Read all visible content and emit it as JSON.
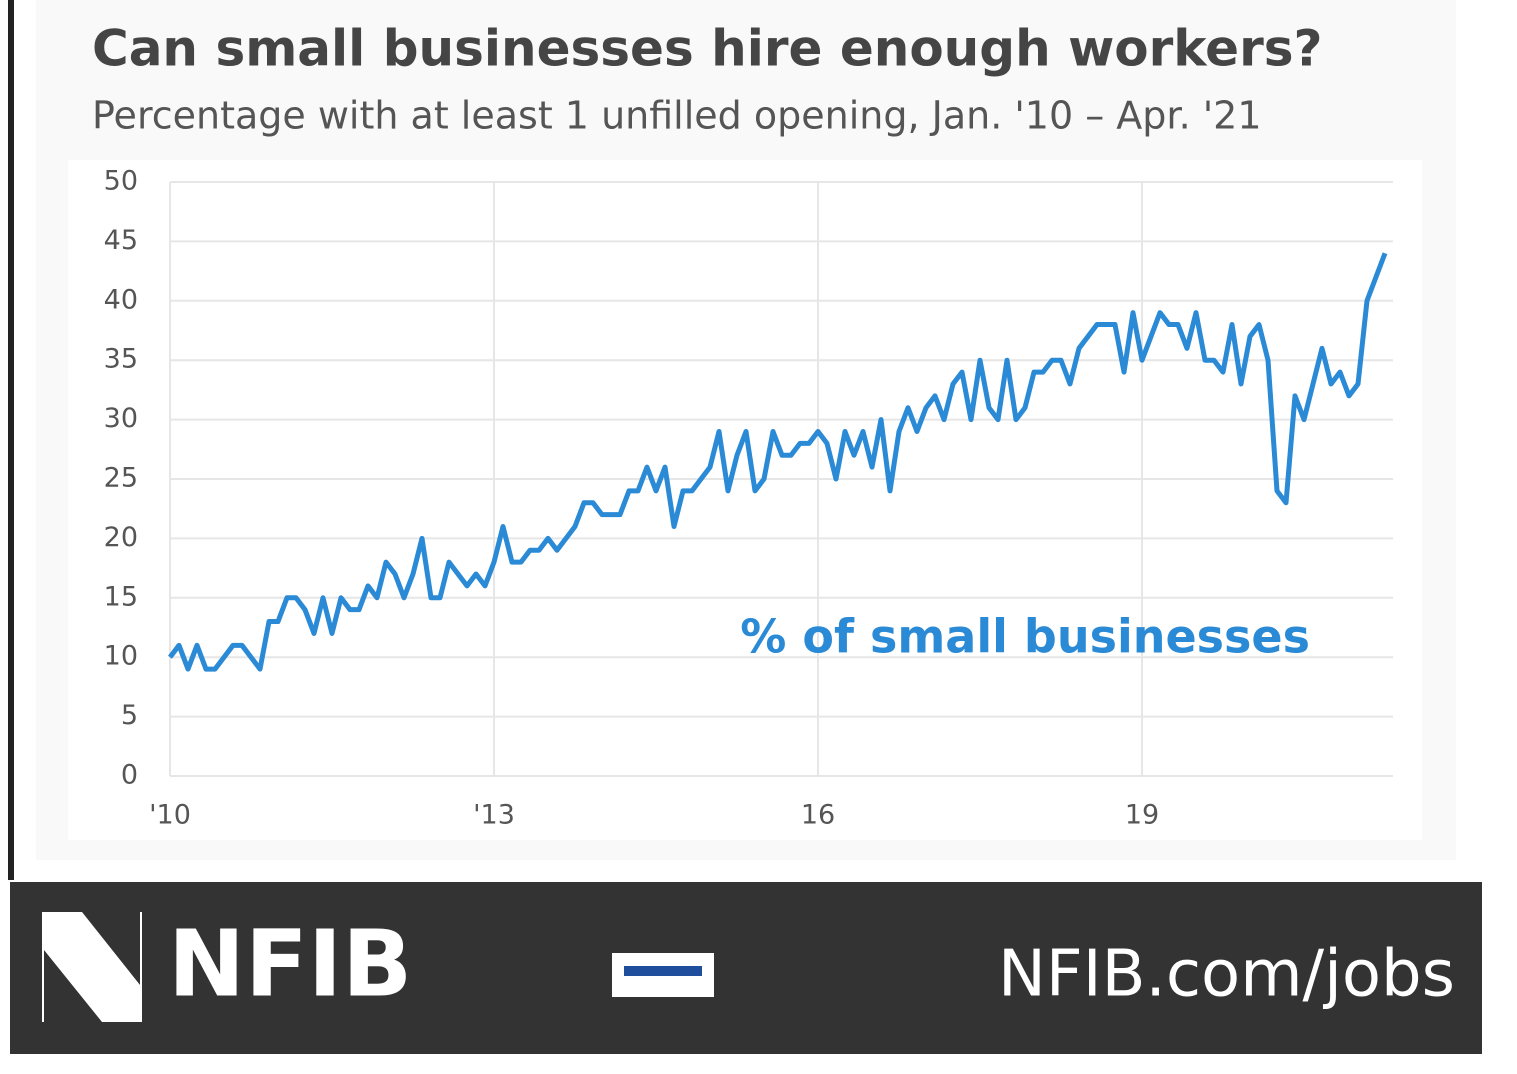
{
  "chart_data": {
    "type": "line",
    "title": "Can small businesses hire enough workers?",
    "subtitle": "Percentage with at least 1 unfilled opening, Jan. '10 – Apr. '21",
    "annotation": "% of small businesses",
    "categories": [
      "'10",
      null,
      null,
      null,
      null,
      null,
      null,
      null,
      null,
      null,
      null,
      null,
      null,
      null,
      null,
      null,
      null,
      null,
      null,
      null,
      null,
      null,
      null,
      null,
      null,
      null,
      null,
      null,
      null,
      null,
      null,
      null,
      null,
      null,
      null,
      null,
      "'13",
      null,
      null,
      null,
      null,
      null,
      null,
      null,
      null,
      null,
      null,
      null,
      null,
      null,
      null,
      null,
      null,
      null,
      null,
      null,
      null,
      null,
      null,
      null,
      null,
      null,
      null,
      null,
      null,
      null,
      null,
      null,
      null,
      null,
      null,
      null,
      "16",
      null,
      null,
      null,
      null,
      null,
      null,
      null,
      null,
      null,
      null,
      null,
      null,
      null,
      null,
      null,
      null,
      null,
      null,
      null,
      null,
      null,
      null,
      null,
      null,
      null,
      null,
      null,
      null,
      null,
      null,
      null,
      null,
      null,
      null,
      null,
      "19",
      null,
      null,
      null,
      null,
      null,
      null,
      null,
      null,
      null,
      null,
      null,
      null,
      null,
      null,
      null,
      null,
      null,
      null,
      null,
      null,
      null,
      null,
      null,
      null,
      null,
      null,
      null
    ],
    "series": [
      {
        "name": "% of small businesses",
        "color": "#2b8ad6",
        "values": [
          10,
          11,
          9,
          11,
          9,
          9,
          10,
          11,
          11,
          10,
          9,
          13,
          13,
          15,
          15,
          14,
          12,
          15,
          12,
          15,
          14,
          14,
          16,
          15,
          18,
          17,
          15,
          17,
          20,
          15,
          15,
          18,
          17,
          16,
          17,
          16,
          18,
          21,
          18,
          18,
          19,
          19,
          20,
          19,
          20,
          21,
          23,
          23,
          22,
          22,
          22,
          24,
          24,
          26,
          24,
          26,
          21,
          24,
          24,
          25,
          26,
          29,
          24,
          27,
          29,
          24,
          25,
          29,
          27,
          27,
          28,
          28,
          29,
          28,
          25,
          29,
          27,
          29,
          26,
          30,
          24,
          29,
          31,
          29,
          31,
          32,
          30,
          33,
          34,
          30,
          35,
          31,
          30,
          35,
          30,
          31,
          34,
          34,
          35,
          35,
          33,
          36,
          37,
          38,
          38,
          38,
          34,
          39,
          35,
          37,
          39,
          38,
          38,
          36,
          39,
          35,
          35,
          34,
          38,
          33,
          37,
          38,
          35,
          24,
          23,
          32,
          30,
          33,
          36,
          33,
          34,
          32,
          33,
          40,
          42,
          44
        ]
      }
    ],
    "ylim": [
      0,
      50
    ],
    "yticks": [
      0,
      5,
      10,
      15,
      20,
      25,
      30,
      35,
      40,
      45,
      50
    ],
    "grid": true
  },
  "footer": {
    "brand": "NFIB",
    "url": "NFIB.com/jobs"
  }
}
